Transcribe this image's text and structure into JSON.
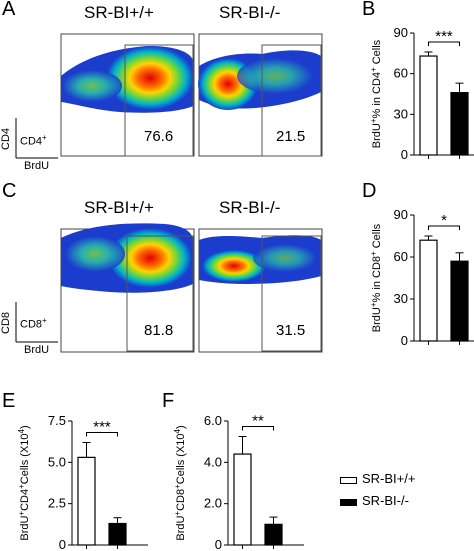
{
  "panel_labels": {
    "A": "A",
    "B": "B",
    "C": "C",
    "D": "D",
    "E": "E",
    "F": "F"
  },
  "flow": {
    "genotype_wt": "SR-BI+/+",
    "genotype_ko": "SR-BI-/-",
    "cd4_axis_y": "CD4",
    "cd4_gate": "CD4",
    "cd8_axis_y": "CD8",
    "cd8_gate": "CD8",
    "superscript": "+",
    "axis_x": "BrdU",
    "cd4_wt_pct": "76.6",
    "cd4_ko_pct": "21.5",
    "cd8_wt_pct": "81.8",
    "cd8_ko_pct": "31.5"
  },
  "legend": {
    "wt": "SR-BI+/+",
    "ko": "SR-BI-/-",
    "wt_color": "#ffffff",
    "ko_color": "#000000"
  },
  "chart_data": [
    {
      "panel": "B",
      "type": "bar",
      "categories": [
        "SR-BI+/+",
        "SR-BI-/-"
      ],
      "values": [
        73,
        46
      ],
      "errors": [
        3,
        7
      ],
      "fills": [
        "#ffffff",
        "#000000"
      ],
      "ylabel_parts": [
        "BrdU",
        "+",
        "% in CD4",
        "+",
        " Cells"
      ],
      "ylim": [
        0,
        90
      ],
      "yticks": [
        "0",
        "30",
        "60",
        "90"
      ],
      "significance": "***"
    },
    {
      "panel": "D",
      "type": "bar",
      "categories": [
        "SR-BI+/+",
        "SR-BI-/-"
      ],
      "values": [
        72,
        57
      ],
      "errors": [
        3,
        6
      ],
      "fills": [
        "#ffffff",
        "#000000"
      ],
      "ylabel_parts": [
        "BrdU",
        "+",
        "% in CD8",
        "+",
        " Cells"
      ],
      "ylim": [
        0,
        90
      ],
      "yticks": [
        "0",
        "30",
        "60",
        "90"
      ],
      "significance": "*"
    },
    {
      "panel": "E",
      "type": "bar",
      "categories": [
        "SR-BI+/+",
        "SR-BI-/-"
      ],
      "values": [
        5.3,
        1.3
      ],
      "errors": [
        0.9,
        0.35
      ],
      "fills": [
        "#ffffff",
        "#000000"
      ],
      "ylabel_parts": [
        "BrdU",
        "+",
        "CD4",
        "+",
        "Cells (X10",
        "4",
        ")"
      ],
      "ylim": [
        0,
        7.5
      ],
      "yticks": [
        "0",
        "2.5",
        "5.0",
        "7.5"
      ],
      "significance": "***"
    },
    {
      "panel": "F",
      "type": "bar",
      "categories": [
        "SR-BI+/+",
        "SR-BI-/-"
      ],
      "values": [
        4.4,
        1.0
      ],
      "errors": [
        0.85,
        0.35
      ],
      "fills": [
        "#ffffff",
        "#000000"
      ],
      "ylabel_parts": [
        "BrdU",
        "+",
        "CD8",
        "+",
        "Cells (X10",
        "4",
        ")"
      ],
      "ylim": [
        0,
        6.0
      ],
      "yticks": [
        "0",
        "2.0",
        "4.0",
        "6.0"
      ],
      "significance": "**"
    }
  ]
}
